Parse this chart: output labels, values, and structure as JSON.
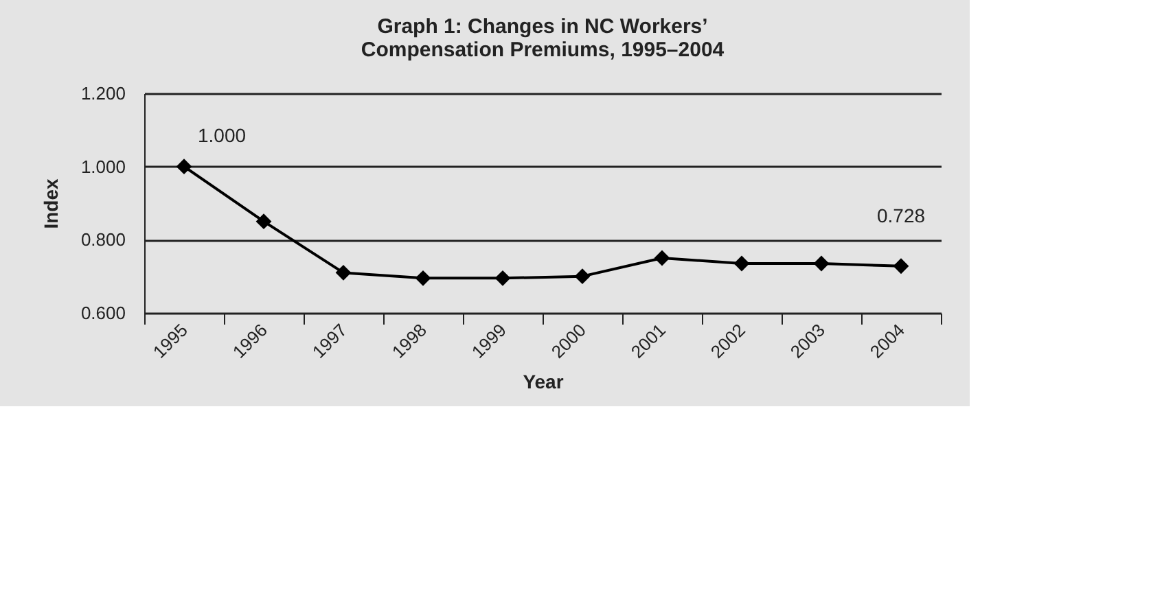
{
  "chart_data": {
    "type": "line",
    "title": "Graph 1: Changes in NC Workers’\nCompensation Premiums, 1995–2004",
    "xlabel": "Year",
    "ylabel": "Index",
    "categories": [
      "1995",
      "1996",
      "1997",
      "1998",
      "1999",
      "2000",
      "2001",
      "2002",
      "2003",
      "2004"
    ],
    "series": [
      {
        "color": "#000000",
        "values": [
          1.0,
          0.85,
          0.71,
          0.695,
          0.695,
          0.7,
          0.75,
          0.735,
          0.735,
          0.728
        ]
      }
    ],
    "ylim": [
      0.6,
      1.2
    ],
    "yticks": [
      {
        "value": 0.6,
        "label": "0.600"
      },
      {
        "value": 0.8,
        "label": "0.800"
      },
      {
        "value": 1.0,
        "label": "1.000"
      },
      {
        "value": 1.2,
        "label": "1.200"
      }
    ],
    "annotations": [
      {
        "text": "1.000",
        "x": "1995",
        "y": 1.0
      },
      {
        "text": "0.728",
        "x": "2004",
        "y": 0.728
      }
    ],
    "grid": "y",
    "marker": "diamond",
    "line_style": "solid"
  }
}
